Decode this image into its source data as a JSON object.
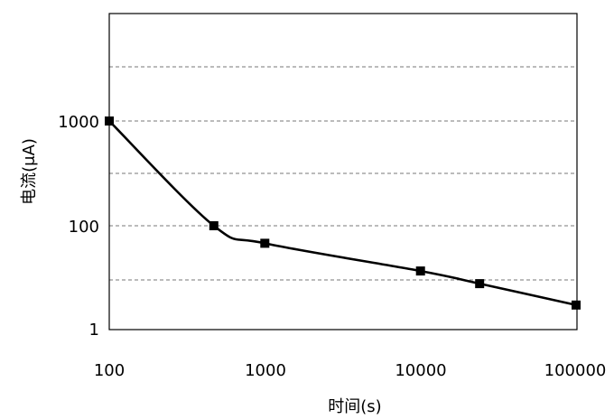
{
  "chart_data": {
    "type": "line",
    "title": "",
    "xlabel": "时间(s)",
    "ylabel": "电流(μA)",
    "x_scale": "log",
    "y_scale": "log",
    "xlim": [
      100,
      100000
    ],
    "y_tick_labels": [
      "1",
      "100",
      "1000"
    ],
    "x_tick_labels": [
      "100",
      "1000",
      "10000",
      "100000"
    ],
    "grid": "horizontal dashed",
    "legend": "none",
    "series": [
      {
        "color": "#000000",
        "marker": "square",
        "x": [
          100,
          470,
          1000,
          10000,
          24000,
          100000
        ],
        "y": [
          1000,
          100,
          68,
          37,
          28,
          17.5
        ]
      }
    ]
  }
}
